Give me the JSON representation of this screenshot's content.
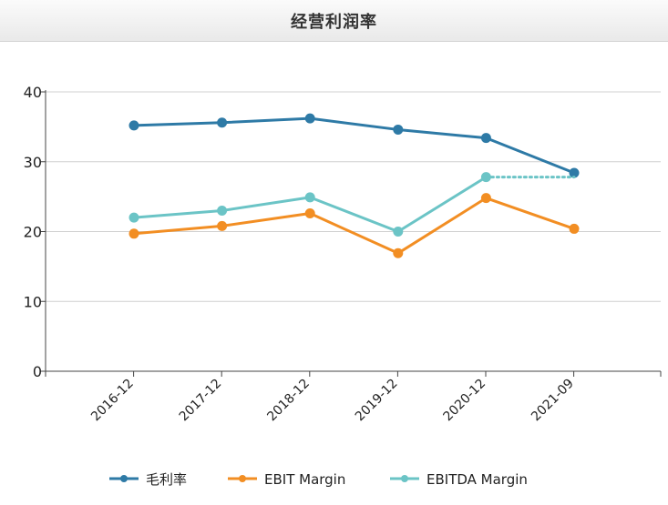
{
  "title": "经营利润率",
  "chart_data": {
    "type": "line",
    "title": "经营利润率",
    "xlabel": "",
    "ylabel": "",
    "categories": [
      "2016-12",
      "2017-12",
      "2018-12",
      "2019-12",
      "2020-12",
      "2021-09"
    ],
    "ylim": [
      0,
      40
    ],
    "yticks": [
      0,
      10,
      20,
      30,
      40
    ],
    "grid": true,
    "legend_position": "bottom",
    "series": [
      {
        "name": "毛利率",
        "color": "#2e7aa6",
        "values": [
          35.2,
          35.6,
          36.2,
          34.6,
          33.4,
          28.4
        ]
      },
      {
        "name": "EBIT Margin",
        "color": "#f28e23",
        "values": [
          19.7,
          20.8,
          22.6,
          16.9,
          24.8,
          20.4
        ]
      },
      {
        "name": "EBITDA Margin",
        "color": "#6bc4c6",
        "values": [
          22.0,
          23.0,
          24.9,
          20.0,
          27.8,
          null
        ],
        "dotted_extension_to": "2021-09"
      }
    ]
  }
}
